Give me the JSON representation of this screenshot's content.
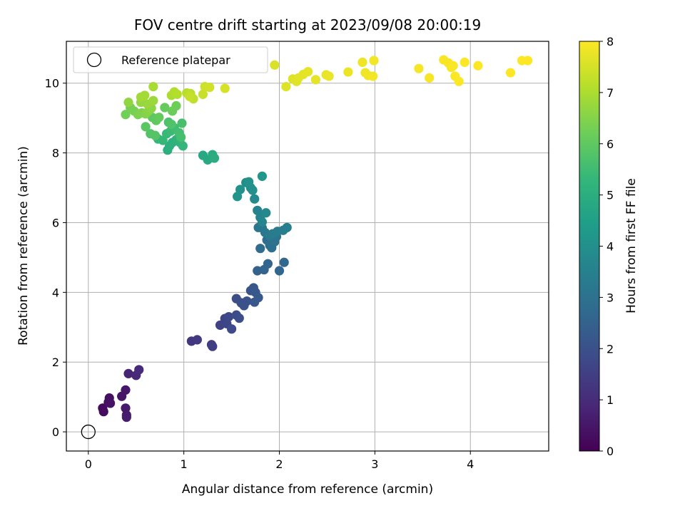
{
  "chart_data": {
    "type": "scatter",
    "title": "FOV centre drift starting at 2023/09/08 20:00:19",
    "xlabel": "Angular distance from reference (arcmin)",
    "ylabel": "Rotation from reference (arcmin)",
    "xlim": [
      -0.23,
      4.82
    ],
    "ylim": [
      -0.55,
      11.2
    ],
    "xticks": [
      0,
      1,
      2,
      3,
      4
    ],
    "yticks": [
      0,
      2,
      4,
      6,
      8,
      10
    ],
    "grid": true,
    "legend": {
      "location": "top-left",
      "entries": [
        "Reference platepar"
      ]
    },
    "reference_point": {
      "x": 0,
      "y": 0,
      "label": "Reference platepar"
    },
    "colorbar": {
      "label": "Hours from first FF file",
      "colormap": "viridis",
      "range": [
        0,
        8
      ],
      "ticks": [
        0,
        1,
        2,
        3,
        4,
        5,
        6,
        7,
        8
      ]
    },
    "colors": {
      "viridis": [
        "#440154",
        "#482878",
        "#3e4989",
        "#31688e",
        "#26828e",
        "#1f9e89",
        "#35b779",
        "#6ece58",
        "#b5de2b",
        "#fde725"
      ],
      "grid": "#b0b0b0",
      "axes": "#000000"
    },
    "points": [
      {
        "x": 0.15,
        "y": 0.68,
        "t": 0.2
      },
      {
        "x": 0.16,
        "y": 0.58,
        "t": 0.25
      },
      {
        "x": 0.21,
        "y": 0.85,
        "t": 0.3
      },
      {
        "x": 0.22,
        "y": 0.97,
        "t": 0.35
      },
      {
        "x": 0.23,
        "y": 0.82,
        "t": 0.4
      },
      {
        "x": 0.35,
        "y": 1.02,
        "t": 0.45
      },
      {
        "x": 0.39,
        "y": 1.2,
        "t": 0.5
      },
      {
        "x": 0.39,
        "y": 0.68,
        "t": 0.55
      },
      {
        "x": 0.4,
        "y": 0.48,
        "t": 0.6
      },
      {
        "x": 0.4,
        "y": 0.42,
        "t": 0.65
      },
      {
        "x": 0.42,
        "y": 1.67,
        "t": 0.8
      },
      {
        "x": 0.5,
        "y": 1.62,
        "t": 0.9
      },
      {
        "x": 0.53,
        "y": 1.78,
        "t": 0.95
      },
      {
        "x": 1.08,
        "y": 2.6,
        "t": 1.3
      },
      {
        "x": 1.14,
        "y": 2.64,
        "t": 1.35
      },
      {
        "x": 1.29,
        "y": 2.5,
        "t": 1.45
      },
      {
        "x": 1.3,
        "y": 2.45,
        "t": 1.5
      },
      {
        "x": 1.38,
        "y": 3.06,
        "t": 1.6
      },
      {
        "x": 1.43,
        "y": 3.25,
        "t": 1.65
      },
      {
        "x": 1.45,
        "y": 3.1,
        "t": 1.7
      },
      {
        "x": 1.47,
        "y": 3.3,
        "t": 1.75
      },
      {
        "x": 1.5,
        "y": 2.95,
        "t": 1.8
      },
      {
        "x": 1.55,
        "y": 3.35,
        "t": 1.85
      },
      {
        "x": 1.58,
        "y": 3.26,
        "t": 1.9
      },
      {
        "x": 1.55,
        "y": 3.82,
        "t": 1.9
      },
      {
        "x": 1.6,
        "y": 3.7,
        "t": 1.95
      },
      {
        "x": 1.63,
        "y": 3.62,
        "t": 2.0
      },
      {
        "x": 1.66,
        "y": 3.75,
        "t": 2.05
      },
      {
        "x": 1.7,
        "y": 4.05,
        "t": 2.1
      },
      {
        "x": 1.73,
        "y": 4.13,
        "t": 2.15
      },
      {
        "x": 1.75,
        "y": 4.0,
        "t": 2.2
      },
      {
        "x": 1.74,
        "y": 3.72,
        "t": 2.2
      },
      {
        "x": 1.78,
        "y": 3.85,
        "t": 2.25
      },
      {
        "x": 1.77,
        "y": 4.62,
        "t": 2.5
      },
      {
        "x": 1.84,
        "y": 4.65,
        "t": 2.55
      },
      {
        "x": 1.88,
        "y": 4.82,
        "t": 2.6
      },
      {
        "x": 2.0,
        "y": 4.62,
        "t": 2.65
      },
      {
        "x": 2.05,
        "y": 4.86,
        "t": 2.7
      },
      {
        "x": 1.8,
        "y": 5.26,
        "t": 2.8
      },
      {
        "x": 1.87,
        "y": 5.5,
        "t": 2.85
      },
      {
        "x": 1.9,
        "y": 5.35,
        "t": 2.9
      },
      {
        "x": 1.92,
        "y": 5.28,
        "t": 2.95
      },
      {
        "x": 1.95,
        "y": 5.45,
        "t": 3.0
      },
      {
        "x": 1.97,
        "y": 5.6,
        "t": 3.05
      },
      {
        "x": 1.78,
        "y": 5.86,
        "t": 3.1
      },
      {
        "x": 1.82,
        "y": 5.85,
        "t": 3.15
      },
      {
        "x": 1.85,
        "y": 5.72,
        "t": 3.2
      },
      {
        "x": 1.9,
        "y": 5.62,
        "t": 3.25
      },
      {
        "x": 1.93,
        "y": 5.68,
        "t": 3.3
      },
      {
        "x": 1.98,
        "y": 5.75,
        "t": 3.35
      },
      {
        "x": 2.04,
        "y": 5.78,
        "t": 3.4
      },
      {
        "x": 2.08,
        "y": 5.86,
        "t": 3.45
      },
      {
        "x": 1.77,
        "y": 6.35,
        "t": 3.6
      },
      {
        "x": 1.8,
        "y": 6.15,
        "t": 3.65
      },
      {
        "x": 1.82,
        "y": 6.02,
        "t": 3.7
      },
      {
        "x": 1.86,
        "y": 6.28,
        "t": 3.75
      },
      {
        "x": 1.74,
        "y": 6.68,
        "t": 3.8
      },
      {
        "x": 1.65,
        "y": 7.15,
        "t": 3.9
      },
      {
        "x": 1.7,
        "y": 7.0,
        "t": 3.95
      },
      {
        "x": 1.72,
        "y": 6.93,
        "t": 4.0
      },
      {
        "x": 1.68,
        "y": 7.17,
        "t": 4.05
      },
      {
        "x": 1.59,
        "y": 6.95,
        "t": 4.1
      },
      {
        "x": 1.56,
        "y": 6.75,
        "t": 4.15
      },
      {
        "x": 1.82,
        "y": 7.33,
        "t": 4.2
      },
      {
        "x": 1.2,
        "y": 7.93,
        "t": 4.8
      },
      {
        "x": 1.25,
        "y": 7.8,
        "t": 4.85
      },
      {
        "x": 1.3,
        "y": 7.95,
        "t": 4.9
      },
      {
        "x": 1.32,
        "y": 7.85,
        "t": 4.95
      },
      {
        "x": 0.83,
        "y": 8.08,
        "t": 5.0
      },
      {
        "x": 0.85,
        "y": 8.2,
        "t": 5.05
      },
      {
        "x": 0.88,
        "y": 8.3,
        "t": 5.1
      },
      {
        "x": 0.92,
        "y": 8.38,
        "t": 5.15
      },
      {
        "x": 0.96,
        "y": 8.3,
        "t": 5.2
      },
      {
        "x": 0.99,
        "y": 8.2,
        "t": 5.25
      },
      {
        "x": 0.73,
        "y": 8.4,
        "t": 5.3
      },
      {
        "x": 0.78,
        "y": 8.36,
        "t": 5.35
      },
      {
        "x": 0.82,
        "y": 8.55,
        "t": 5.4
      },
      {
        "x": 0.86,
        "y": 8.62,
        "t": 5.45
      },
      {
        "x": 0.9,
        "y": 8.72,
        "t": 5.5
      },
      {
        "x": 0.95,
        "y": 8.58,
        "t": 5.55
      },
      {
        "x": 0.97,
        "y": 8.45,
        "t": 5.6
      },
      {
        "x": 0.98,
        "y": 8.85,
        "t": 5.65
      },
      {
        "x": 0.84,
        "y": 8.88,
        "t": 5.7
      },
      {
        "x": 0.87,
        "y": 8.82,
        "t": 5.75
      },
      {
        "x": 0.65,
        "y": 8.55,
        "t": 5.8
      },
      {
        "x": 0.7,
        "y": 8.5,
        "t": 5.85
      },
      {
        "x": 0.6,
        "y": 8.75,
        "t": 5.9
      },
      {
        "x": 0.67,
        "y": 9.02,
        "t": 5.95
      },
      {
        "x": 0.71,
        "y": 8.93,
        "t": 6.0
      },
      {
        "x": 0.74,
        "y": 9.02,
        "t": 6.05
      },
      {
        "x": 0.8,
        "y": 9.3,
        "t": 6.1
      },
      {
        "x": 0.88,
        "y": 9.2,
        "t": 6.15
      },
      {
        "x": 0.92,
        "y": 9.35,
        "t": 6.2
      },
      {
        "x": 0.39,
        "y": 9.1,
        "t": 6.25
      },
      {
        "x": 0.44,
        "y": 9.3,
        "t": 6.3
      },
      {
        "x": 0.48,
        "y": 9.2,
        "t": 6.35
      },
      {
        "x": 0.52,
        "y": 9.1,
        "t": 6.4
      },
      {
        "x": 0.56,
        "y": 9.15,
        "t": 6.45
      },
      {
        "x": 0.6,
        "y": 9.12,
        "t": 6.5
      },
      {
        "x": 0.63,
        "y": 9.2,
        "t": 6.55
      },
      {
        "x": 0.66,
        "y": 9.28,
        "t": 6.6
      },
      {
        "x": 0.42,
        "y": 9.45,
        "t": 6.65
      },
      {
        "x": 0.55,
        "y": 9.45,
        "t": 6.7
      },
      {
        "x": 0.62,
        "y": 9.4,
        "t": 6.75
      },
      {
        "x": 0.68,
        "y": 9.5,
        "t": 6.8
      },
      {
        "x": 0.55,
        "y": 9.6,
        "t": 6.85
      },
      {
        "x": 0.59,
        "y": 9.65,
        "t": 6.9
      },
      {
        "x": 0.68,
        "y": 9.9,
        "t": 6.95
      },
      {
        "x": 0.87,
        "y": 9.65,
        "t": 7.0
      },
      {
        "x": 0.9,
        "y": 9.75,
        "t": 7.05
      },
      {
        "x": 0.93,
        "y": 9.68,
        "t": 7.1
      },
      {
        "x": 1.03,
        "y": 9.72,
        "t": 7.15
      },
      {
        "x": 1.07,
        "y": 9.7,
        "t": 7.2
      },
      {
        "x": 1.1,
        "y": 9.55,
        "t": 7.25
      },
      {
        "x": 1.06,
        "y": 9.62,
        "t": 7.3
      },
      {
        "x": 1.2,
        "y": 9.68,
        "t": 7.35
      },
      {
        "x": 1.22,
        "y": 9.9,
        "t": 7.4
      },
      {
        "x": 1.27,
        "y": 9.88,
        "t": 7.45
      },
      {
        "x": 1.43,
        "y": 9.85,
        "t": 7.5
      },
      {
        "x": 1.95,
        "y": 10.52,
        "t": 7.55
      },
      {
        "x": 2.07,
        "y": 9.9,
        "t": 7.6
      },
      {
        "x": 2.14,
        "y": 10.12,
        "t": 7.62
      },
      {
        "x": 2.18,
        "y": 10.05,
        "t": 7.64
      },
      {
        "x": 2.2,
        "y": 10.15,
        "t": 7.66
      },
      {
        "x": 2.25,
        "y": 10.25,
        "t": 7.68
      },
      {
        "x": 2.3,
        "y": 10.33,
        "t": 7.7
      },
      {
        "x": 2.38,
        "y": 10.1,
        "t": 7.72
      },
      {
        "x": 2.49,
        "y": 10.24,
        "t": 7.74
      },
      {
        "x": 2.52,
        "y": 10.2,
        "t": 7.76
      },
      {
        "x": 2.72,
        "y": 10.32,
        "t": 7.78
      },
      {
        "x": 2.87,
        "y": 10.6,
        "t": 7.8
      },
      {
        "x": 2.9,
        "y": 10.3,
        "t": 7.82
      },
      {
        "x": 2.93,
        "y": 10.22,
        "t": 7.84
      },
      {
        "x": 2.98,
        "y": 10.2,
        "t": 7.86
      },
      {
        "x": 2.99,
        "y": 10.65,
        "t": 7.88
      },
      {
        "x": 3.46,
        "y": 10.42,
        "t": 7.9
      },
      {
        "x": 3.57,
        "y": 10.15,
        "t": 7.91
      },
      {
        "x": 3.72,
        "y": 10.67,
        "t": 7.92
      },
      {
        "x": 3.77,
        "y": 10.58,
        "t": 7.93
      },
      {
        "x": 3.8,
        "y": 10.45,
        "t": 7.94
      },
      {
        "x": 3.82,
        "y": 10.5,
        "t": 7.95
      },
      {
        "x": 3.84,
        "y": 10.2,
        "t": 7.96
      },
      {
        "x": 3.88,
        "y": 10.05,
        "t": 7.97
      },
      {
        "x": 3.94,
        "y": 10.6,
        "t": 7.98
      },
      {
        "x": 4.08,
        "y": 10.5,
        "t": 7.99
      },
      {
        "x": 4.42,
        "y": 10.3,
        "t": 8.0
      },
      {
        "x": 4.54,
        "y": 10.65,
        "t": 8.0
      },
      {
        "x": 4.6,
        "y": 10.65,
        "t": 8.0
      }
    ]
  }
}
